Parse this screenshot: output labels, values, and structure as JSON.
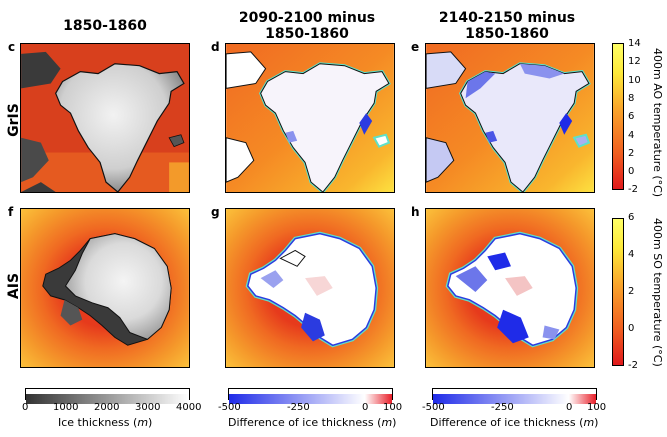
{
  "columns": [
    {
      "title_l1": "1850-1860",
      "title_l2": ""
    },
    {
      "title_l1": "2090-2100 minus",
      "title_l2": "1850-1860"
    },
    {
      "title_l1": "2140-2150 minus",
      "title_l2": "1850-1860"
    }
  ],
  "rows": [
    {
      "label": "GrIS",
      "letters": [
        "c",
        "d",
        "e"
      ]
    },
    {
      "label": "AIS",
      "letters": [
        "f",
        "g",
        "h"
      ]
    }
  ],
  "colorbars": {
    "thickness": {
      "label": "Ice thickness",
      "unit": "m",
      "ticks": [
        "0",
        "1000",
        "2000",
        "3000",
        "4000"
      ],
      "min": 0,
      "max": 4000,
      "colors": [
        "#333333",
        "#ffffff"
      ]
    },
    "diff1": {
      "label": "Difference of ice thickness",
      "unit": "m",
      "ticks": [
        "-500",
        "-250",
        "0",
        "100"
      ],
      "min": -500,
      "max": 100,
      "colors": [
        "#1f2be8",
        "#ffffff",
        "#e8202a"
      ]
    },
    "diff2": {
      "label": "Difference of ice thickness",
      "unit": "m",
      "ticks": [
        "-500",
        "-250",
        "0",
        "100"
      ],
      "min": -500,
      "max": 100,
      "colors": [
        "#1f2be8",
        "#ffffff",
        "#e8202a"
      ]
    },
    "ao": {
      "label": "400m AO temperature (°C)",
      "ticks": [
        "14",
        "12",
        "10",
        "8",
        "6",
        "4",
        "2",
        "0",
        "-2"
      ],
      "min": -2,
      "max": 14,
      "colors": [
        "#e0191c",
        "#f9851f",
        "#fde93a",
        "#ffff60"
      ]
    },
    "so": {
      "label": "400m SO temperature (°C)",
      "ticks": [
        "6",
        "4",
        "2",
        "0",
        "-2"
      ],
      "min": -2,
      "max": 6,
      "colors": [
        "#e0191c",
        "#f9851f",
        "#fde93a",
        "#ffff60"
      ]
    }
  },
  "chart_data": {
    "type": "heatmap",
    "panels": [
      "c",
      "d",
      "e",
      "f",
      "g",
      "h"
    ],
    "rows": [
      "GrIS",
      "AIS"
    ],
    "columns": [
      "1850-1860",
      "2090-2100 minus 1850-1860",
      "2140-2150 minus 1850-1860"
    ],
    "colorbar_ranges": {
      "ice_thickness_m": [
        0,
        4000
      ],
      "difference_of_ice_thickness_m": [
        -500,
        100
      ],
      "ao_temperature_400m_c": [
        -2,
        14
      ],
      "so_temperature_400m_c": [
        -2,
        6
      ]
    }
  }
}
